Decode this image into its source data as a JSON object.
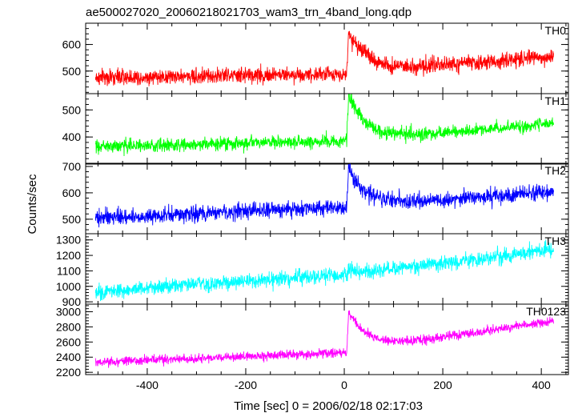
{
  "title": "ae500027020_20060218021703_wam3_trn_4band_long.qdp",
  "xlabel": "Time [sec] 0 = 2006/02/18 02:17:03",
  "ylabel": "Counts/sec",
  "chart_data": {
    "type": "line",
    "title": "ae500027020_20060218021703_wam3_trn_4band_long.qdp",
    "xlabel": "Time [sec] 0 = 2006/02/18 02:17:03",
    "ylabel": "Counts/sec",
    "xlim": [
      -525,
      455
    ],
    "xticks_major": [
      -400,
      -200,
      0,
      200,
      400
    ],
    "x_start": -505,
    "x_end": 425,
    "flare_time": 5,
    "panels": [
      {
        "name": "TH0",
        "color": "#ff0000",
        "ylim": [
          415,
          680
        ],
        "yticks": [
          500,
          600
        ],
        "baseline": [
          [
            -505,
            475
          ],
          [
            0,
            490
          ],
          [
            425,
            555
          ]
        ],
        "noise": 25,
        "peak": 645,
        "decay": 40
      },
      {
        "name": "TH1",
        "color": "#00ff00",
        "ylim": [
          300,
          560
        ],
        "yticks": [
          400,
          500
        ],
        "baseline": [
          [
            -505,
            365
          ],
          [
            0,
            385
          ],
          [
            425,
            450
          ]
        ],
        "noise": 20,
        "peak": 560,
        "decay": 35
      },
      {
        "name": "TH2",
        "color": "#0000ff",
        "ylim": [
          445,
          712
        ],
        "yticks": [
          500,
          600,
          700
        ],
        "baseline": [
          [
            -505,
            505
          ],
          [
            0,
            545
          ],
          [
            425,
            605
          ]
        ],
        "noise": 25,
        "peak": 690,
        "decay": 35
      },
      {
        "name": "TH3",
        "color": "#00ffff",
        "ylim": [
          885,
          1340
        ],
        "yticks": [
          900,
          1000,
          1100,
          1200,
          1300
        ],
        "baseline": [
          [
            -505,
            965
          ],
          [
            0,
            1075
          ],
          [
            425,
            1235
          ]
        ],
        "noise": 40,
        "peak": 1110,
        "decay": 20
      },
      {
        "name": "TH0123",
        "color": "#ff00ff",
        "ylim": [
          2170,
          3100
        ],
        "yticks": [
          2200,
          2400,
          2600,
          2800,
          3000
        ],
        "baseline": [
          [
            -505,
            2330
          ],
          [
            0,
            2460
          ],
          [
            425,
            2880
          ]
        ],
        "noise": 50,
        "peak": 3000,
        "decay": 40
      }
    ]
  }
}
